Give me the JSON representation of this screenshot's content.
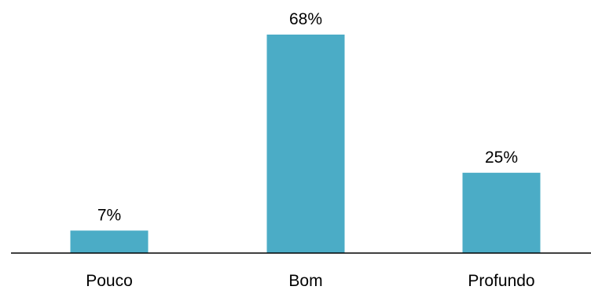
{
  "chart_data": {
    "type": "bar",
    "categories": [
      "Pouco",
      "Bom",
      "Profundo"
    ],
    "values": [
      7,
      68,
      25
    ],
    "value_labels": [
      "7%",
      "68%",
      "25%"
    ],
    "ylim": [
      0,
      68
    ],
    "grid": false,
    "legend": "none",
    "bar_color": "#4BACC6",
    "axis_color": "#000000"
  }
}
